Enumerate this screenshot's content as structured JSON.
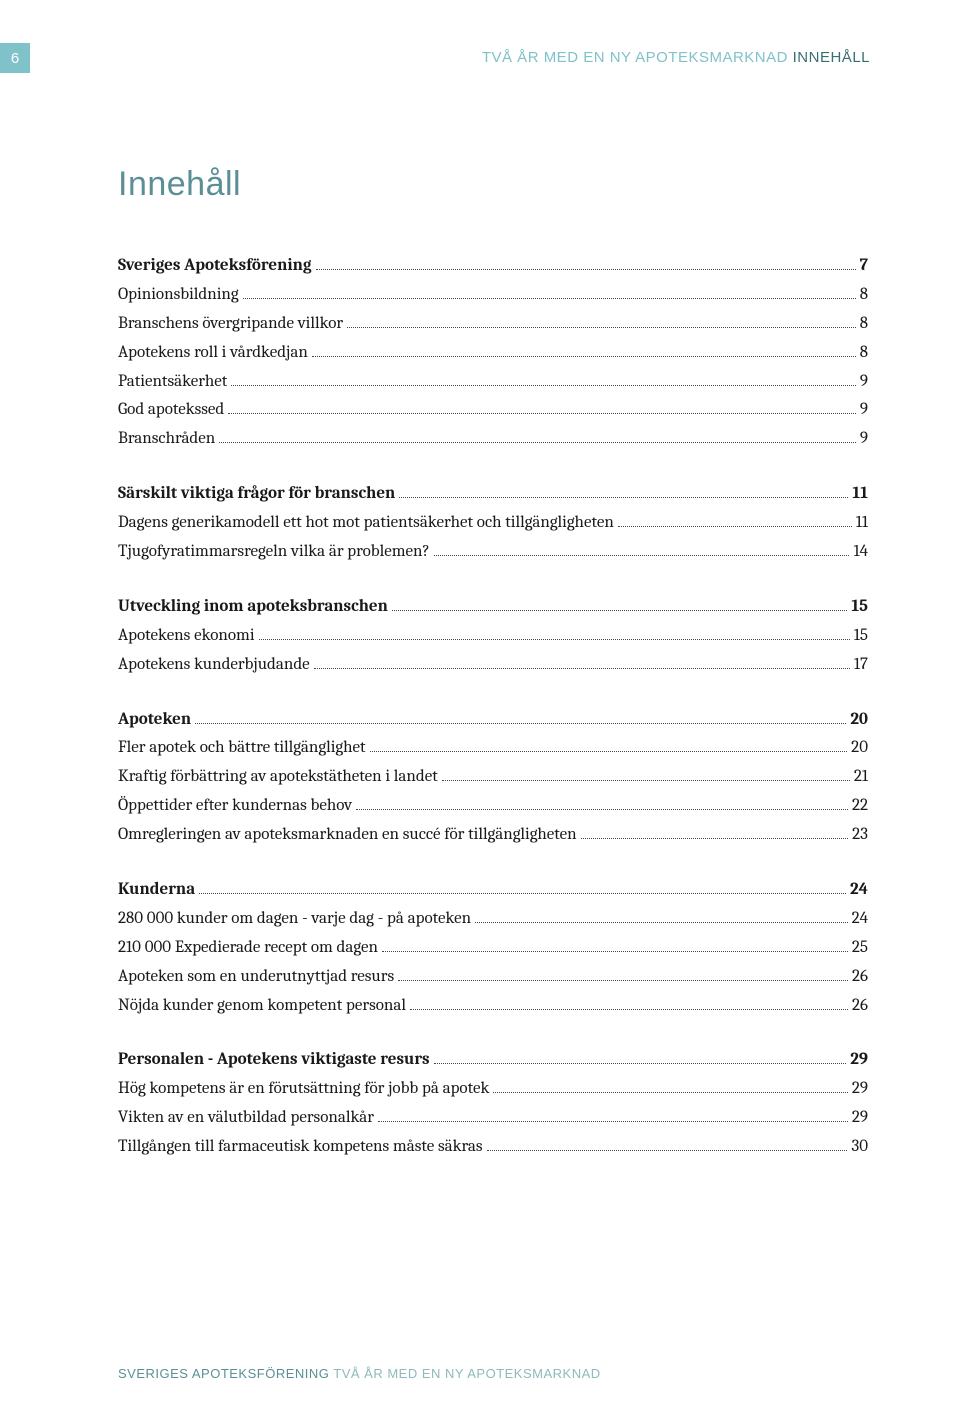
{
  "page_number": "6",
  "header": {
    "light": "TVÅ ÅR MED EN NY APOTEKSMARKNAD",
    "dark": "INNEHÅLL"
  },
  "title": "Innehåll",
  "sections": [
    {
      "heading": {
        "label": "Sveriges Apoteksförening",
        "page": "7"
      },
      "items": [
        {
          "label": "Opinionsbildning",
          "page": "8"
        },
        {
          "label": "Branschens övergripande villkor",
          "page": "8"
        },
        {
          "label": "Apotekens roll i vårdkedjan",
          "page": "8"
        },
        {
          "label": "Patientsäkerhet",
          "page": "9"
        },
        {
          "label": "God apotekssed",
          "page": "9"
        },
        {
          "label": "Branschråden",
          "page": "9"
        }
      ]
    },
    {
      "heading": {
        "label": "Särskilt viktiga frågor för branschen",
        "page": "11"
      },
      "items": [
        {
          "label": "Dagens generikamodell ett hot mot patientsäkerhet och tillgängligheten",
          "page": "11"
        },
        {
          "label": "Tjugofyratimmarsregeln vilka är problemen?",
          "page": "14"
        }
      ]
    },
    {
      "heading": {
        "label": "Utveckling inom apoteksbranschen",
        "page": "15"
      },
      "items": [
        {
          "label": "Apotekens ekonomi",
          "page": "15"
        },
        {
          "label": "Apotekens kunderbjudande",
          "page": "17"
        }
      ]
    },
    {
      "heading": {
        "label": "Apoteken",
        "page": "20"
      },
      "items": [
        {
          "label": "Fler apotek och bättre tillgänglighet",
          "page": "20"
        },
        {
          "label": "Kraftig förbättring av apotekstätheten i landet",
          "page": "21"
        },
        {
          "label": "Öppettider efter kundernas behov",
          "page": "22"
        },
        {
          "label": "Omregleringen av apoteksmarknaden en succé för tillgängligheten",
          "page": "23"
        }
      ]
    },
    {
      "heading": {
        "label": "Kunderna",
        "page": "24"
      },
      "items": [
        {
          "label": "280 000 kunder om dagen - varje dag - på apoteken",
          "page": "24"
        },
        {
          "label": "210 000 Expedierade recept om dagen",
          "page": "25"
        },
        {
          "label": "Apoteken som en underutnyttjad resurs",
          "page": "26"
        },
        {
          "label": "Nöjda kunder genom kompetent personal",
          "page": "26"
        }
      ]
    },
    {
      "heading": {
        "label": "Personalen - Apotekens viktigaste resurs",
        "page": "29"
      },
      "items": [
        {
          "label": "Hög kompetens är en förutsättning för jobb på apotek",
          "page": "29"
        },
        {
          "label": "Vikten av en välutbildad personalkår",
          "page": "29"
        },
        {
          "label": "Tillgången till farmaceutisk kompetens måste säkras",
          "page": "30"
        }
      ]
    }
  ],
  "footer": {
    "teal": "SVERIGES APOTEKSFÖRENING",
    "light": "TVÅ ÅR MED EN NY APOTEKSMARKNAD"
  }
}
